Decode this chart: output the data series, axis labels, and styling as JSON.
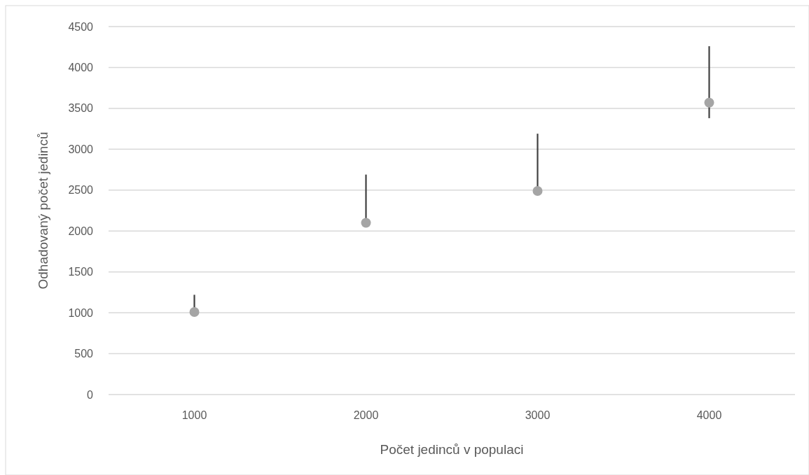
{
  "chart_data": {
    "type": "scatter",
    "xlabel": "Počet jedinců v populaci",
    "ylabel": "Odhadovaný počet jedinců",
    "categories": [
      "1000",
      "2000",
      "3000",
      "4000"
    ],
    "series": [
      {
        "color": "#a5a5a5",
        "values": [
          1010,
          2100,
          2490,
          3570
        ],
        "errors": [
          [
            1010,
            1220
          ],
          [
            2100,
            2690
          ],
          [
            2490,
            3190
          ],
          [
            3380,
            4260
          ]
        ]
      }
    ],
    "ylim": [
      0,
      4500
    ],
    "yticks": [
      0,
      500,
      1000,
      1500,
      2000,
      2500,
      3000,
      3500,
      4000,
      4500
    ],
    "grid": "y",
    "marker": "circle"
  }
}
